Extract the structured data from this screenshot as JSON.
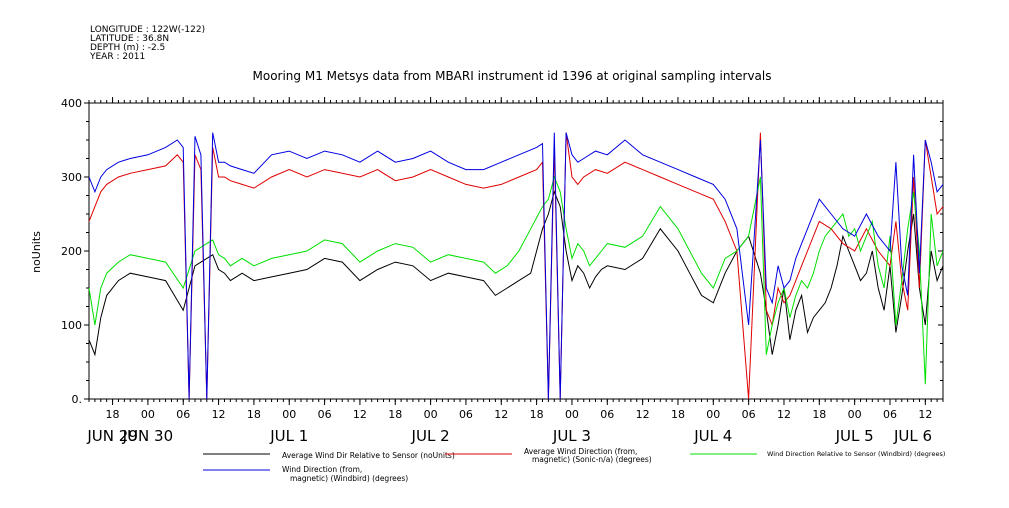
{
  "header": {
    "longitude": "LONGITUDE : 122W(-122)",
    "latitude": "LATITUDE : 36.8N",
    "depth": "DEPTH (m) : -2.5",
    "year": "YEAR : 2011"
  },
  "chart_data": {
    "type": "line",
    "title": "Mooring M1 Metsys data from MBARI instrument id 1396 at original sampling intervals",
    "ylabel": "noUnits",
    "xlabel": "",
    "ylim": [
      0,
      400
    ],
    "y_ticks": [
      0,
      100,
      200,
      300,
      400
    ],
    "y_tick_labels": [
      "0.",
      "100",
      "200",
      "300",
      "400"
    ],
    "x_unit": "hours since 2011-06-29 00:00",
    "xlim": [
      14,
      159
    ],
    "x_ticks": [
      18,
      24,
      30,
      36,
      42,
      48,
      54,
      60,
      66,
      72,
      78,
      84,
      90,
      96,
      102,
      108,
      114,
      120,
      126,
      132,
      138,
      144,
      150,
      156
    ],
    "x_tick_labels": [
      "18",
      "00",
      "06",
      "12",
      "18",
      "00",
      "06",
      "12",
      "18",
      "00",
      "06",
      "12",
      "18",
      "00",
      "06",
      "12",
      "18",
      "00",
      "06",
      "12",
      "18",
      "00",
      "06",
      "12"
    ],
    "day_labels": [
      {
        "x": 18,
        "label": "JUN 29"
      },
      {
        "x": 24,
        "label": "JUN 30"
      },
      {
        "x": 48,
        "label": "JUL  1"
      },
      {
        "x": 72,
        "label": "JUL  2"
      },
      {
        "x": 96,
        "label": "JUL  3"
      },
      {
        "x": 120,
        "label": "JUL  4"
      },
      {
        "x": 144,
        "label": "JUL  5"
      },
      {
        "x": 168,
        "label": "JUL  6"
      }
    ],
    "grid": false,
    "legend_position": "bottom",
    "series": [
      {
        "name": "Average Wind Dir Relative to Sensor (noUnits)",
        "color": "#000000",
        "x": [
          14,
          15,
          16,
          17,
          19,
          21,
          24,
          27,
          30,
          32,
          34,
          35,
          36,
          37,
          38,
          39,
          40,
          42,
          45,
          48,
          51,
          54,
          57,
          60,
          63,
          66,
          69,
          72,
          75,
          78,
          81,
          83,
          85,
          87,
          89,
          91,
          92,
          93,
          94,
          95,
          96,
          97,
          98,
          99,
          100,
          101,
          102,
          105,
          108,
          111,
          114,
          116,
          118,
          120,
          122,
          124,
          126,
          128,
          129,
          130,
          131,
          132,
          133,
          134,
          135,
          136,
          137,
          138,
          139,
          140,
          141,
          142,
          143,
          144,
          145,
          146,
          147,
          148,
          149,
          150,
          151,
          152,
          153,
          154,
          155,
          156,
          157,
          158,
          159
        ],
        "y": [
          80,
          60,
          110,
          140,
          160,
          170,
          165,
          160,
          120,
          180,
          190,
          195,
          175,
          170,
          160,
          165,
          170,
          160,
          165,
          170,
          175,
          190,
          185,
          160,
          175,
          185,
          180,
          160,
          170,
          165,
          160,
          140,
          150,
          160,
          170,
          230,
          250,
          280,
          260,
          200,
          160,
          180,
          170,
          150,
          165,
          175,
          180,
          175,
          190,
          230,
          200,
          170,
          140,
          130,
          170,
          200,
          220,
          170,
          120,
          60,
          100,
          150,
          80,
          120,
          140,
          90,
          110,
          120,
          130,
          150,
          180,
          220,
          200,
          180,
          160,
          170,
          200,
          150,
          120,
          180,
          90,
          140,
          200,
          250,
          150,
          100,
          200,
          160,
          180
        ]
      },
      {
        "name": "Average Wind Direction (from, magnetic) (Sonic-n/a) (degrees)",
        "color": "#e00000",
        "x": [
          14,
          15,
          16,
          17,
          19,
          21,
          24,
          27,
          29,
          30,
          31,
          32,
          33,
          34,
          35,
          36,
          37,
          38,
          40,
          42,
          45,
          48,
          51,
          54,
          57,
          60,
          63,
          66,
          69,
          72,
          75,
          78,
          81,
          84,
          87,
          90,
          91,
          92,
          93,
          94,
          95,
          96,
          97,
          98,
          100,
          102,
          105,
          108,
          111,
          114,
          117,
          120,
          122,
          124,
          126,
          128,
          129,
          130,
          131,
          132,
          133,
          134,
          135,
          136,
          137,
          138,
          139,
          140,
          142,
          144,
          146,
          148,
          150,
          151,
          152,
          153,
          154,
          155,
          156,
          157,
          158,
          159
        ],
        "y": [
          240,
          260,
          280,
          290,
          300,
          305,
          310,
          315,
          330,
          320,
          0,
          330,
          310,
          0,
          340,
          300,
          300,
          295,
          290,
          285,
          300,
          310,
          300,
          310,
          305,
          300,
          310,
          295,
          300,
          310,
          300,
          290,
          285,
          290,
          300,
          310,
          320,
          0,
          340,
          0,
          360,
          300,
          290,
          300,
          310,
          305,
          320,
          310,
          300,
          290,
          280,
          270,
          240,
          200,
          0,
          360,
          120,
          100,
          150,
          130,
          140,
          160,
          180,
          200,
          220,
          240,
          235,
          230,
          210,
          200,
          230,
          200,
          180,
          240,
          160,
          120,
          300,
          150,
          350,
          300,
          250,
          260
        ]
      },
      {
        "name": "Wind Direction Relative to Sensor (Windbird) (degrees)",
        "color": "#00e000",
        "x": [
          14,
          15,
          16,
          17,
          19,
          21,
          24,
          27,
          30,
          32,
          34,
          35,
          36,
          37,
          38,
          39,
          40,
          42,
          45,
          48,
          51,
          54,
          57,
          60,
          63,
          66,
          69,
          72,
          75,
          78,
          81,
          83,
          85,
          87,
          89,
          91,
          92,
          93,
          94,
          95,
          96,
          97,
          98,
          99,
          100,
          101,
          102,
          105,
          108,
          111,
          114,
          116,
          118,
          120,
          122,
          124,
          126,
          128,
          129,
          130,
          131,
          132,
          133,
          134,
          135,
          136,
          137,
          138,
          139,
          140,
          141,
          142,
          143,
          144,
          145,
          146,
          147,
          148,
          149,
          150,
          151,
          152,
          153,
          154,
          155,
          156,
          157,
          158,
          159
        ],
        "y": [
          150,
          100,
          150,
          170,
          185,
          195,
          190,
          185,
          150,
          200,
          210,
          215,
          195,
          190,
          180,
          185,
          190,
          180,
          190,
          195,
          200,
          215,
          210,
          185,
          200,
          210,
          205,
          185,
          195,
          190,
          185,
          170,
          180,
          200,
          230,
          260,
          270,
          300,
          280,
          230,
          190,
          210,
          200,
          180,
          190,
          200,
          210,
          205,
          220,
          260,
          230,
          200,
          170,
          150,
          190,
          200,
          220,
          300,
          60,
          100,
          130,
          150,
          110,
          140,
          160,
          150,
          170,
          200,
          220,
          230,
          240,
          250,
          220,
          230,
          200,
          220,
          240,
          180,
          150,
          220,
          100,
          160,
          230,
          280,
          200,
          20,
          250,
          180,
          200
        ]
      },
      {
        "name": "Wind Direction (from, magnetic) (Windbird) (degrees)",
        "color": "#0000e0",
        "x": [
          14,
          15,
          16,
          17,
          19,
          21,
          24,
          27,
          29,
          30,
          31,
          32,
          33,
          34,
          35,
          36,
          37,
          38,
          40,
          42,
          45,
          48,
          51,
          54,
          57,
          60,
          63,
          66,
          69,
          72,
          75,
          78,
          81,
          84,
          87,
          90,
          91,
          92,
          93,
          94,
          95,
          96,
          97,
          98,
          100,
          102,
          105,
          108,
          111,
          114,
          117,
          120,
          122,
          124,
          126,
          128,
          129,
          130,
          131,
          132,
          133,
          134,
          135,
          136,
          137,
          138,
          139,
          140,
          142,
          144,
          146,
          148,
          150,
          151,
          152,
          153,
          154,
          155,
          156,
          157,
          158,
          159
        ],
        "y": [
          300,
          280,
          300,
          310,
          320,
          325,
          330,
          340,
          350,
          340,
          0,
          355,
          330,
          0,
          360,
          320,
          320,
          315,
          310,
          305,
          330,
          335,
          325,
          335,
          330,
          320,
          335,
          320,
          325,
          335,
          320,
          310,
          310,
          320,
          330,
          340,
          345,
          0,
          360,
          0,
          360,
          330,
          320,
          325,
          335,
          330,
          350,
          330,
          320,
          310,
          300,
          290,
          270,
          230,
          100,
          350,
          150,
          130,
          180,
          150,
          160,
          190,
          210,
          230,
          250,
          270,
          260,
          250,
          230,
          220,
          250,
          220,
          200,
          320,
          180,
          140,
          330,
          170,
          350,
          320,
          280,
          290
        ]
      }
    ]
  }
}
